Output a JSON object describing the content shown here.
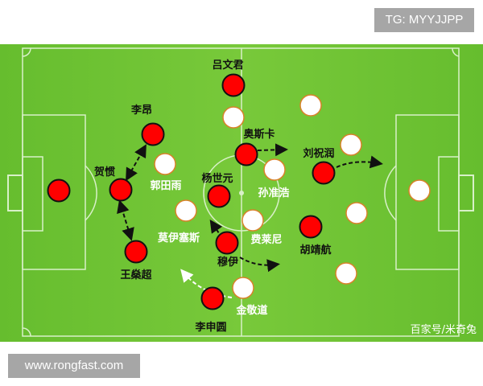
{
  "watermark_top": "TG: MYYJJPP",
  "watermark_bottom": "www.rongfast.com",
  "credit": "百家号/米奇兔",
  "colors": {
    "pitch": "#6fc434",
    "home": "#ff0000",
    "away": "#ffffff",
    "away_outline": "#d9822b"
  },
  "home_players": [
    {
      "name": ""
    },
    {
      "name": "吕文君"
    },
    {
      "name": "李昂"
    },
    {
      "name": "贺惯"
    },
    {
      "name": "王燊超"
    },
    {
      "name": "杨世元"
    },
    {
      "name": "奥斯卡"
    },
    {
      "name": "穆伊"
    },
    {
      "name": "刘祝润"
    },
    {
      "name": "胡靖航"
    },
    {
      "name": "李申圆"
    }
  ],
  "away_labels": [
    "郭田雨",
    "孙准浩",
    "莫伊塞斯",
    "费莱尼",
    "金敬道"
  ]
}
